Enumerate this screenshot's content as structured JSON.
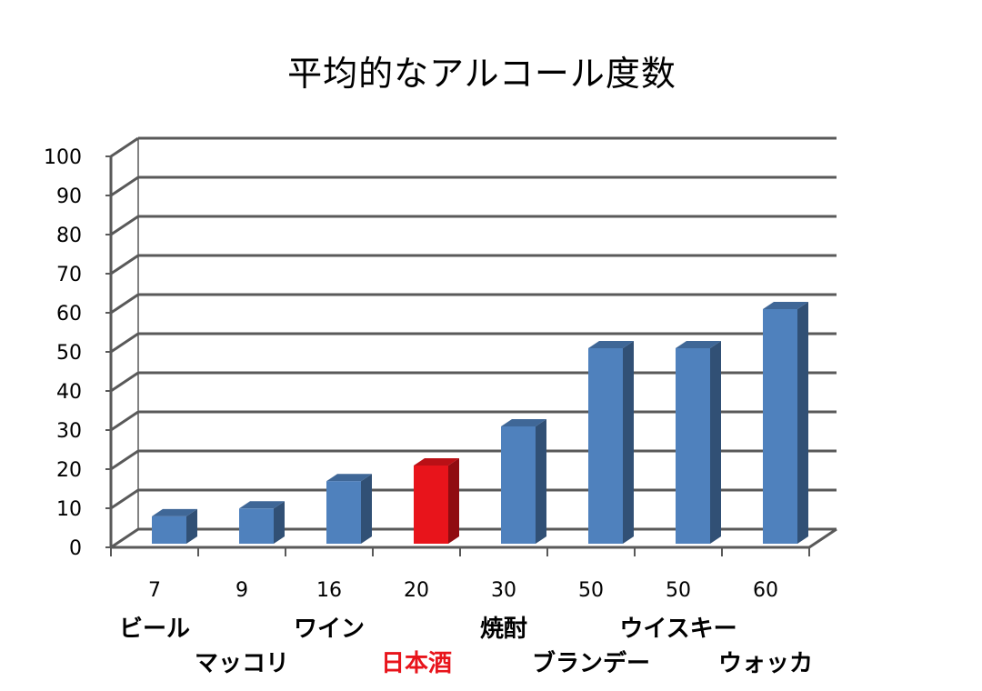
{
  "chart_data": {
    "type": "bar",
    "title": "平均的なアルコール度数",
    "categories": [
      "ビール",
      "マッコリ",
      "ワイン",
      "日本酒",
      "焼酎",
      "ブランデー",
      "ウイスキー",
      "ウォッカ"
    ],
    "values": [
      7,
      9,
      16,
      20,
      30,
      50,
      50,
      60
    ],
    "value_labels": [
      "7",
      "9",
      "16",
      "20",
      "30",
      "50",
      "50",
      "60"
    ],
    "highlight_category": "日本酒",
    "ylim": [
      0,
      100
    ],
    "yticks": [
      "0",
      "10",
      "20",
      "30",
      "40",
      "50",
      "60",
      "70",
      "80",
      "90",
      "100"
    ],
    "grid": true,
    "legend": "none",
    "style": "3d-column"
  },
  "colors": {
    "bar": "#4F81BD",
    "highlight_bar": "#E8141B",
    "highlight_label": "#E8141B",
    "grid": "#595959"
  }
}
